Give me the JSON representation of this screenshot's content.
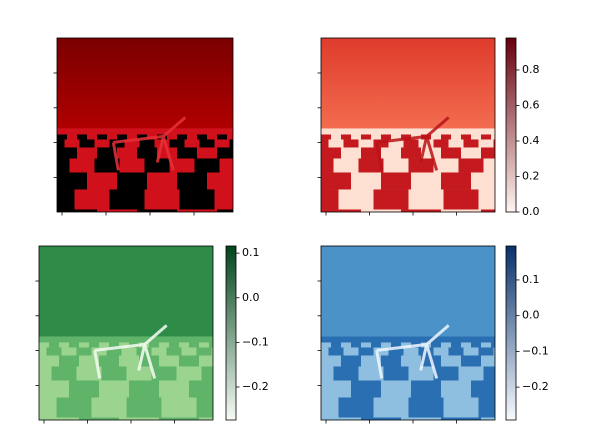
{
  "chart_data": [
    {
      "type": "image",
      "cmap": "dark-red"
    },
    {
      "type": "image",
      "cmap": "Reds",
      "colorbar": {
        "ylim": [
          0,
          0.98
        ],
        "yticks": [
          {
            "value": 0,
            "label": "0.0"
          },
          0.2,
          0.4,
          0.6,
          0.8
        ]
      }
    },
    {
      "type": "image",
      "cmap": "Greens",
      "colorbar": {
        "ylim": [
          -0.274,
          0.116
        ],
        "yticks": [
          {
            "value": -0.2,
            "label": "−0.2"
          },
          {
            "value": -0.1,
            "label": "−0.1"
          },
          {
            "value": 0,
            "label": "0.0"
          },
          0.1
        ]
      }
    },
    {
      "type": "image",
      "cmap": "Blues",
      "colorbar": {
        "ylim": [
          -0.292,
          0.195
        ],
        "yticks": [
          {
            "value": -0.2,
            "label": "−0.2"
          },
          {
            "value": -0.1,
            "label": "−0.1"
          },
          {
            "value": 0,
            "label": "0.0"
          },
          0.1
        ]
      }
    }
  ]
}
